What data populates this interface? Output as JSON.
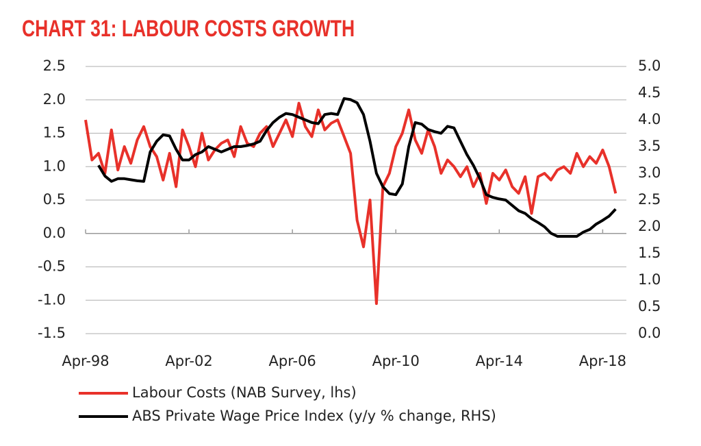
{
  "chart_data": {
    "type": "line",
    "title": "CHART 31: LABOUR COSTS GROWTH",
    "x": [
      "Apr-98",
      "Jul-98",
      "Oct-98",
      "Jan-99",
      "Apr-99",
      "Jul-99",
      "Oct-99",
      "Jan-00",
      "Apr-00",
      "Jul-00",
      "Oct-00",
      "Jan-01",
      "Apr-01",
      "Jul-01",
      "Oct-01",
      "Jan-02",
      "Apr-02",
      "Jul-02",
      "Oct-02",
      "Jan-03",
      "Apr-03",
      "Jul-03",
      "Oct-03",
      "Jan-04",
      "Apr-04",
      "Jul-04",
      "Oct-04",
      "Jan-05",
      "Apr-05",
      "Jul-05",
      "Oct-05",
      "Jan-06",
      "Apr-06",
      "Jul-06",
      "Oct-06",
      "Jan-07",
      "Apr-07",
      "Jul-07",
      "Oct-07",
      "Jan-08",
      "Apr-08",
      "Jul-08",
      "Oct-08",
      "Jan-09",
      "Apr-09",
      "Jul-09",
      "Oct-09",
      "Jan-10",
      "Apr-10",
      "Jul-10",
      "Oct-10",
      "Jan-11",
      "Apr-11",
      "Jul-11",
      "Oct-11",
      "Jan-12",
      "Apr-12",
      "Jul-12",
      "Oct-12",
      "Jan-13",
      "Apr-13",
      "Jul-13",
      "Oct-13",
      "Jan-14",
      "Apr-14",
      "Jul-14",
      "Oct-14",
      "Jan-15",
      "Apr-15",
      "Jul-15",
      "Oct-15",
      "Jan-16",
      "Apr-16",
      "Jul-16",
      "Oct-16",
      "Jan-17",
      "Apr-17",
      "Jul-17",
      "Oct-17",
      "Jan-18",
      "Apr-18",
      "Jul-18",
      "Oct-18"
    ],
    "series": [
      {
        "name": "Labour Costs (NAB Survey, lhs)",
        "color": "#e8312a",
        "axis": "y",
        "values": [
          1.7,
          1.1,
          1.2,
          0.9,
          1.55,
          0.95,
          1.3,
          1.05,
          1.4,
          1.6,
          1.3,
          1.15,
          0.8,
          1.2,
          0.7,
          1.55,
          1.3,
          1.0,
          1.5,
          1.1,
          1.25,
          1.35,
          1.4,
          1.15,
          1.6,
          1.35,
          1.3,
          1.5,
          1.6,
          1.3,
          1.5,
          1.7,
          1.45,
          1.95,
          1.6,
          1.45,
          1.85,
          1.55,
          1.65,
          1.7,
          1.45,
          1.2,
          0.2,
          -0.2,
          0.5,
          -1.05,
          0.7,
          0.9,
          1.3,
          1.5,
          1.85,
          1.4,
          1.2,
          1.55,
          1.3,
          0.9,
          1.1,
          1.0,
          0.85,
          1.0,
          0.7,
          0.9,
          0.45,
          0.9,
          0.8,
          0.95,
          0.7,
          0.6,
          0.85,
          0.3,
          0.85,
          0.9,
          0.8,
          0.95,
          1.0,
          0.9,
          1.2,
          1.0,
          1.15,
          1.05,
          1.25,
          1.0,
          0.6
        ]
      },
      {
        "name": "ABS Private Wage Price Index (y/y % change, RHS)",
        "color": "#000000",
        "axis": "y2",
        "values": [
          null,
          null,
          3.15,
          2.95,
          2.85,
          2.9,
          2.9,
          2.88,
          2.86,
          2.85,
          3.4,
          3.6,
          3.72,
          3.7,
          3.45,
          3.25,
          3.25,
          3.35,
          3.4,
          3.5,
          3.45,
          3.4,
          3.45,
          3.5,
          3.5,
          3.52,
          3.55,
          3.6,
          3.8,
          3.95,
          4.05,
          4.12,
          4.1,
          4.05,
          4.0,
          3.95,
          3.93,
          4.1,
          4.12,
          4.1,
          4.4,
          4.38,
          4.32,
          4.1,
          3.6,
          3.0,
          2.75,
          2.62,
          2.6,
          2.8,
          3.5,
          3.95,
          3.92,
          3.82,
          3.78,
          3.75,
          3.88,
          3.85,
          3.6,
          3.35,
          3.15,
          2.9,
          2.6,
          2.55,
          2.52,
          2.5,
          2.4,
          2.3,
          2.25,
          2.15,
          2.08,
          2.0,
          1.88,
          1.82,
          1.82,
          1.82,
          1.82,
          1.9,
          1.95,
          2.05,
          2.12,
          2.2,
          2.33
        ]
      }
    ],
    "xlim": [
      "Apr-98",
      "Mar-19"
    ],
    "xticks": [
      "Apr-98",
      "Apr-02",
      "Apr-06",
      "Apr-10",
      "Apr-14",
      "Apr-18"
    ],
    "ylim": [
      -1.5,
      2.5
    ],
    "yticks": [
      2.5,
      {
        "value": 2,
        "label": "2.0"
      },
      1.5,
      {
        "value": 1,
        "label": "1.0"
      },
      0.5,
      {
        "value": 0,
        "label": "0.0"
      },
      -0.5,
      {
        "value": -1,
        "label": "-1.0"
      },
      -1.5
    ],
    "y2lim": [
      0,
      5
    ],
    "y2ticks": [
      {
        "value": 5,
        "label": "5.0"
      },
      4.5,
      {
        "value": 4,
        "label": "4.0"
      },
      3.5,
      {
        "value": 3,
        "label": "3.0"
      },
      2.5,
      {
        "value": 2,
        "label": "2.0"
      },
      1.5,
      {
        "value": 1,
        "label": "1.0"
      },
      0.5,
      {
        "value": 0,
        "label": "0.0"
      }
    ],
    "grid": true
  }
}
